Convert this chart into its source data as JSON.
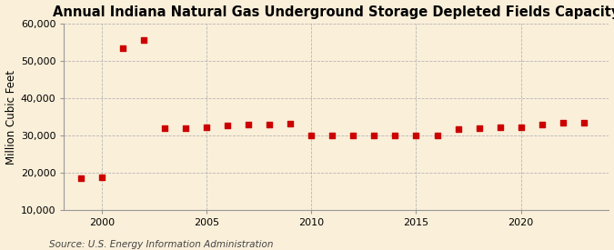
{
  "title": "Annual Indiana Natural Gas Underground Storage Depleted Fields Capacity",
  "ylabel": "Million Cubic Feet",
  "source": "Source: U.S. Energy Information Administration",
  "background_color": "#faefd9",
  "plot_bg_color": "#faefd9",
  "marker_color": "#cc0000",
  "years": [
    1999,
    2000,
    2001,
    2002,
    2003,
    2004,
    2005,
    2006,
    2007,
    2008,
    2009,
    2010,
    2011,
    2012,
    2013,
    2014,
    2015,
    2016,
    2017,
    2018,
    2019,
    2020,
    2021,
    2022,
    2023
  ],
  "values": [
    18500,
    18700,
    53500,
    55700,
    32000,
    32000,
    32200,
    32700,
    32900,
    33000,
    33100,
    30000,
    30100,
    30100,
    30100,
    30000,
    30000,
    30100,
    31700,
    31900,
    32200,
    32200,
    32900,
    33400,
    33500
  ],
  "ylim": [
    10000,
    60000
  ],
  "yticks": [
    10000,
    20000,
    30000,
    40000,
    50000,
    60000
  ],
  "xlim": [
    1998.2,
    2024.2
  ],
  "xticks": [
    2000,
    2005,
    2010,
    2015,
    2020
  ],
  "grid_color": "#b0b0b0",
  "title_fontsize": 10.5,
  "label_fontsize": 8.5,
  "tick_fontsize": 8,
  "source_fontsize": 7.5
}
